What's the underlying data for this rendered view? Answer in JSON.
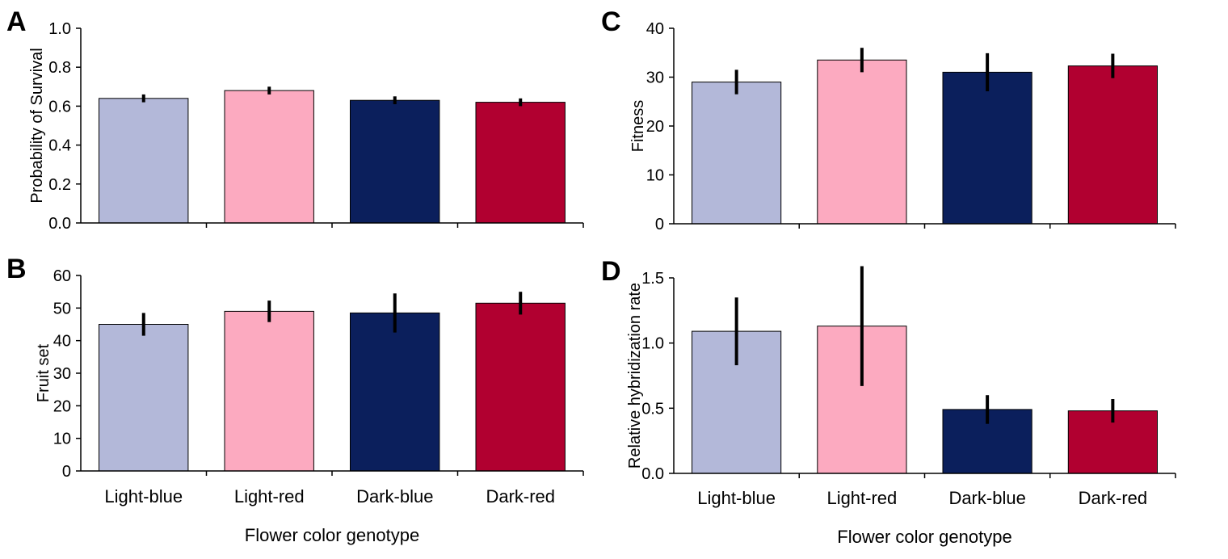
{
  "chart_data": [
    {
      "type": "bar",
      "panel": "A",
      "categories": [
        "Light-blue",
        "Light-red",
        "Dark-blue",
        "Dark-red"
      ],
      "values": [
        0.64,
        0.68,
        0.63,
        0.62
      ],
      "errors": [
        0.02,
        0.02,
        0.02,
        0.02
      ],
      "colors": [
        "#b3b8d9",
        "#fcaac0",
        "#0b1f5c",
        "#b10030"
      ],
      "title": "",
      "xlabel": "",
      "ylabel": "Probability of Survival",
      "ylim": [
        0,
        1.0
      ],
      "yticks": [
        0.0,
        0.2,
        0.4,
        0.6,
        0.8,
        1.0
      ],
      "ytick_labels": [
        "0.0",
        "0.2",
        "0.4",
        "0.6",
        "0.8",
        "1.0"
      ],
      "show_category_labels": false
    },
    {
      "type": "bar",
      "panel": "B",
      "categories": [
        "Light-blue",
        "Light-red",
        "Dark-blue",
        "Dark-red"
      ],
      "values": [
        45,
        49,
        48.5,
        51.5
      ],
      "errors": [
        3.5,
        3.3,
        6,
        3.5
      ],
      "colors": [
        "#b3b8d9",
        "#fcaac0",
        "#0b1f5c",
        "#b10030"
      ],
      "title": "",
      "xlabel": "Flower color genotype",
      "ylabel": "Fruit set",
      "ylim": [
        0,
        60
      ],
      "yticks": [
        0,
        10,
        20,
        30,
        40,
        50,
        60
      ],
      "ytick_labels": [
        "0",
        "10",
        "20",
        "30",
        "40",
        "50",
        "60"
      ],
      "show_category_labels": true
    },
    {
      "type": "bar",
      "panel": "C",
      "categories": [
        "Light-blue",
        "Light-red",
        "Dark-blue",
        "Dark-red"
      ],
      "values": [
        29,
        33.5,
        31,
        32.3
      ],
      "errors": [
        2.5,
        2.5,
        3.9,
        2.5
      ],
      "colors": [
        "#b3b8d9",
        "#fcaac0",
        "#0b1f5c",
        "#b10030"
      ],
      "title": "",
      "xlabel": "",
      "ylabel": "Fitness",
      "ylim": [
        0,
        40
      ],
      "yticks": [
        0,
        10,
        20,
        30,
        40
      ],
      "ytick_labels": [
        "0",
        "10",
        "20",
        "30",
        "40"
      ],
      "show_category_labels": false
    },
    {
      "type": "bar",
      "panel": "D",
      "categories": [
        "Light-blue",
        "Light-red",
        "Dark-blue",
        "Dark-red"
      ],
      "values": [
        1.09,
        1.13,
        0.49,
        0.48
      ],
      "errors": [
        0.26,
        0.46,
        0.11,
        0.09
      ],
      "colors": [
        "#b3b8d9",
        "#fcaac0",
        "#0b1f5c",
        "#b10030"
      ],
      "title": "",
      "xlabel": "Flower color genotype",
      "ylabel": "Relative hybridization rate",
      "ylim": [
        0,
        1.5
      ],
      "yticks": [
        0.0,
        0.5,
        1.0,
        1.5
      ],
      "ytick_labels": [
        "0.0",
        "0.5",
        "1.0",
        "1.5"
      ],
      "show_category_labels": true
    }
  ]
}
